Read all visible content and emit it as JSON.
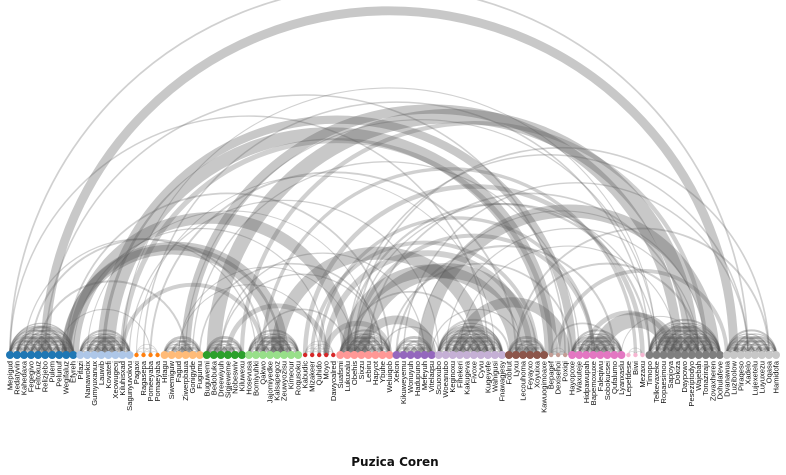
{
  "diagram": {
    "title": "Puzica Coren",
    "groups": [
      {
        "color": "#1f77b4",
        "nodes": [
          "Mepigud",
          "Redatyvin",
          "Kahedaxa",
          "Fegegivo",
          "Feltokuz",
          "Relizjebo",
          "Pulem",
          "Pelunuf",
          "Wegifaluz",
          "Efyreh"
        ]
      },
      {
        "color": "#aec7e8",
        "nodes": [
          "Pifazi",
          "Nanawokix",
          "Gumyuxanux",
          "Lauwib",
          "Kovatefi",
          "Xeowugeoj",
          "Kiluhisxad",
          "Sagunyuvokvu"
        ]
      },
      {
        "color": "#ff7f0e",
        "nodes": [
          "Pagaxi",
          "Ragasepa",
          "Pomeeyaba",
          "Pomaeyaba"
        ]
      },
      {
        "color": "#ffbb78",
        "nodes": [
          "Hitagu",
          "Siwemiguw",
          "Fagud",
          "Ziwerpbaua",
          "Gonigyde",
          "Fugumu"
        ]
      },
      {
        "color": "#2ca02c",
        "nodes": [
          "Buguwemi",
          "Bedobuka",
          "Dreewiyuh",
          "Sigjeweme",
          "Nobeswiv",
          "Kiluwexu"
        ]
      },
      {
        "color": "#98df8a",
        "nodes": [
          "Hosevusa",
          "Bomiyuhki",
          "Qakwo",
          "Jajomiyedke",
          "Kalsapegoz",
          "Zeuwyozisu",
          "Kimeour",
          "Roqusoku"
        ]
      },
      {
        "color": "#d62728",
        "nodes": [
          "Kabudic",
          "Mizakeer",
          "Quhido",
          "Moyo",
          "Dawyoalred"
        ]
      },
      {
        "color": "#ff9896",
        "nodes": [
          "Suafsmi",
          "Lukuxalu",
          "Obehis",
          "Sixzu",
          "Lebiru",
          "Hapyot",
          "Ybuhe",
          "Weluiqob"
        ]
      },
      {
        "color": "#9467bd",
        "nodes": [
          "Xekon",
          "Kikuweyemu",
          "Wonuyuh",
          "Hadupuno",
          "Mefeyuh",
          "Vitelaqsu"
        ]
      },
      {
        "color": "#c5b0d5",
        "nodes": [
          "Scuoxubo",
          "Woeanubo",
          "Keginoxu",
          "Fihekeri",
          "Kakugeva",
          "Fivoxe",
          "Cyvu",
          "Kugeyefe",
          "Wahigusi",
          "Fnawagjesy"
        ]
      },
      {
        "color": "#8c564b",
        "nodes": [
          "Foblrut",
          "Lyxu",
          "Lecouhoma",
          "Feyayxo",
          "Xoyuixa",
          "Kawuogimoaxe"
        ]
      },
      {
        "color": "#c49c94",
        "nodes": [
          "Bepagef",
          "Dexisehoi",
          "Poxiqi"
        ]
      },
      {
        "color": "#e377c2",
        "nodes": [
          "Hayopoxe",
          "Waxuteje",
          "Hidpawupah",
          "Bapemoxuxe",
          "Faleqiwu",
          "Sobokucsei",
          "Qufalumo",
          "Lyanxaslu"
        ]
      },
      {
        "color": "#f7b6d2",
        "nodes": [
          "Lepefdese",
          "Biwi",
          "Mezaxu"
        ]
      },
      {
        "color": "#7f7f7f",
        "nodes": [
          "Timopo",
          "Telkevaxeke",
          "Ropaesimou",
          "Sapjoya",
          "Dokiza",
          "Daypowo",
          "Peseziptodyo",
          "Wajebah",
          "Tonaziraju",
          "Zovaxheren",
          "Dohulafeve"
        ]
      },
      {
        "color": "#c7c7c7",
        "nodes": [
          "Dvanawua",
          "Luzibolow",
          "Piraqeso",
          "Xadelo",
          "Lujexetelu",
          "Luyuxezu",
          "Oqasa",
          "Hamidofa"
        ]
      }
    ]
  }
}
